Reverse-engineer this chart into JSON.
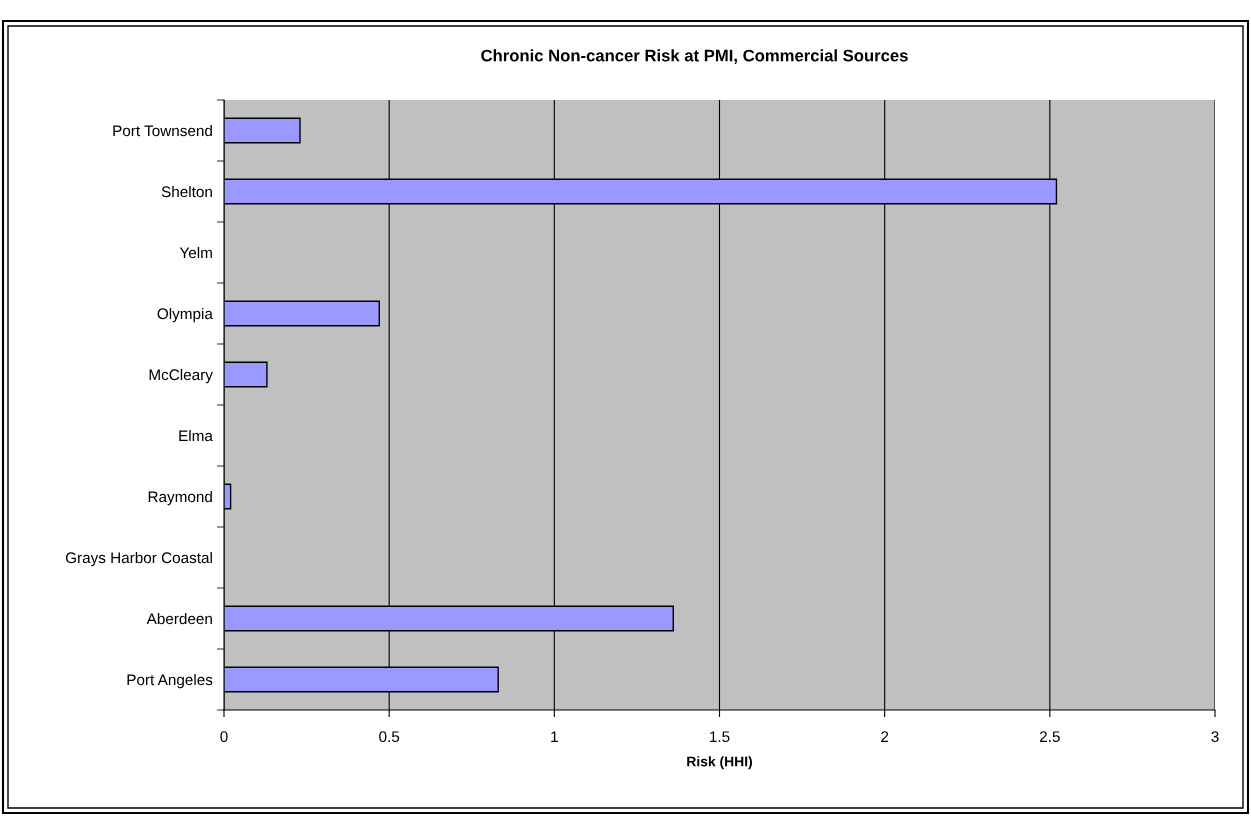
{
  "chart_data": {
    "type": "bar",
    "orientation": "horizontal",
    "title": "Chronic Non-cancer Risk at PMI, Commercial Sources",
    "xlabel": "Risk (HHI)",
    "categories": [
      "Port Townsend",
      "Shelton",
      "Yelm",
      "Olympia",
      "McCleary",
      "Elma",
      "Raymond",
      "Grays Harbor Coastal",
      "Aberdeen",
      "Port Angeles"
    ],
    "values": [
      0.23,
      2.52,
      0,
      0.47,
      0.13,
      0,
      0.02,
      0,
      1.36,
      0.83
    ],
    "color": "#9999ff",
    "xlim": [
      0,
      3
    ],
    "xticks": [
      0,
      0.5,
      1,
      1.5,
      2,
      2.5,
      3
    ],
    "grid": "x"
  }
}
